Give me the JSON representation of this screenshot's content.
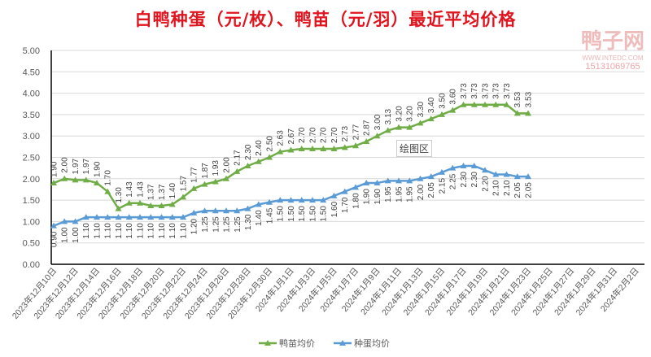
{
  "title": "白鸭种蛋（元/枚）、鸭苗（元/羽）最近平均价格",
  "logo": {
    "name": "鸭子网",
    "url": "WWW.INTEDC.COM",
    "phone": "15131069765"
  },
  "tooltip": "绘图区",
  "chart_data": {
    "type": "line",
    "title": "白鸭种蛋（元/枚）、鸭苗（元/羽）最近平均价格",
    "ylim": [
      0,
      5
    ],
    "yticks": [
      "0.00",
      "0.50",
      "1.00",
      "1.50",
      "2.00",
      "2.50",
      "3.00",
      "3.50",
      "4.00",
      "4.50",
      "5.00"
    ],
    "xticks": [
      "2023年12月10日",
      "2023年12月12日",
      "2023年12月14日",
      "2023年12月16日",
      "2023年12月18日",
      "2023年12月20日",
      "2023年12月22日",
      "2023年12月24日",
      "2023年12月26日",
      "2023年12月28日",
      "2023年12月30日",
      "2024年1月1日",
      "2024年1月3日",
      "2024年1月5日",
      "2024年1月7日",
      "2024年1月9日",
      "2024年1月11日",
      "2024年1月13日",
      "2024年1月15日",
      "2024年1月17日",
      "2024年1月19日",
      "2024年1月21日",
      "2024年1月23日",
      "2024年1月25日",
      "2024年1月27日",
      "2024年1月29日",
      "2024年1月31日",
      "2024年2月2日"
    ],
    "x_start": "2023-12-10",
    "x_days": 55,
    "legend": "bottom",
    "series": [
      {
        "name": "鸭苗均价",
        "color": "#70ad47",
        "values": [
          1.9,
          2.0,
          1.97,
          1.97,
          1.9,
          1.7,
          1.3,
          1.43,
          1.43,
          1.37,
          1.37,
          1.4,
          1.57,
          1.77,
          1.87,
          1.93,
          2.0,
          2.17,
          2.3,
          2.4,
          2.5,
          2.63,
          2.67,
          2.7,
          2.7,
          2.7,
          2.7,
          2.73,
          2.77,
          2.87,
          3.0,
          3.13,
          3.2,
          3.2,
          3.3,
          3.4,
          3.5,
          3.6,
          3.73,
          3.73,
          3.73,
          3.73,
          3.73,
          3.53,
          3.53
        ]
      },
      {
        "name": "种蛋均价",
        "color": "#5b9bd5",
        "values": [
          0.9,
          1.0,
          1.0,
          1.1,
          1.1,
          1.1,
          1.1,
          1.1,
          1.1,
          1.1,
          1.1,
          1.1,
          1.1,
          1.2,
          1.25,
          1.25,
          1.25,
          1.25,
          1.3,
          1.4,
          1.45,
          1.5,
          1.5,
          1.5,
          1.5,
          1.5,
          1.6,
          1.7,
          1.8,
          1.9,
          1.9,
          1.95,
          1.95,
          1.95,
          2.0,
          2.05,
          2.15,
          2.25,
          2.3,
          2.3,
          2.2,
          2.1,
          2.1,
          2.05,
          2.05
        ]
      }
    ]
  }
}
